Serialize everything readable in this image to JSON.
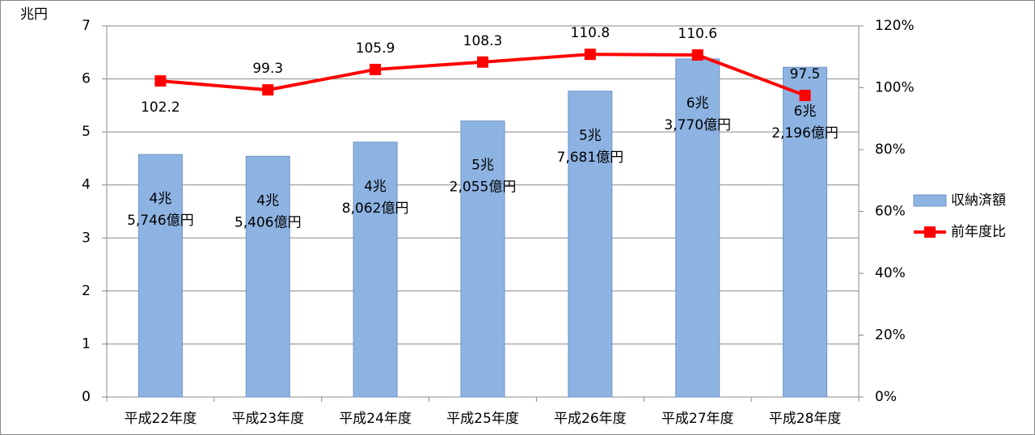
{
  "chart_data": {
    "type": "bar",
    "y_label": "兆円",
    "categories": [
      "平成22年度",
      "平成23年度",
      "平成24年度",
      "平成25年度",
      "平成26年度",
      "平成27年度",
      "平成28年度"
    ],
    "series": [
      {
        "name": "収納済額",
        "type": "bar",
        "color": "#8db3e2",
        "edge": "#6f95c8",
        "values": [
          4.5746,
          4.5406,
          4.8062,
          5.2055,
          5.7681,
          6.377,
          6.2196
        ],
        "value_labels": [
          [
            "4兆",
            "5,746億円"
          ],
          [
            "4兆",
            "5,406億円"
          ],
          [
            "4兆",
            "8,062億円"
          ],
          [
            "5兆",
            "2,055億円"
          ],
          [
            "5兆",
            "7,681億円"
          ],
          [
            "6兆",
            "3,770億円"
          ],
          [
            "6兆",
            "2,196億円"
          ]
        ]
      },
      {
        "name": "前年度比",
        "type": "line",
        "axis": "y2",
        "color": "#ff0000",
        "values": [
          102.2,
          99.3,
          105.9,
          108.3,
          110.8,
          110.6,
          97.5
        ]
      }
    ],
    "ylim": [
      0,
      7
    ],
    "yticks": [
      0,
      1,
      2,
      3,
      4,
      5,
      6,
      7
    ],
    "y2lim": [
      0,
      120
    ],
    "y2ticks": [
      {
        "value": 0,
        "label": "0%"
      },
      {
        "value": 20,
        "label": "20%"
      },
      {
        "value": 40,
        "label": "40%"
      },
      {
        "value": 60,
        "label": "60%"
      },
      {
        "value": 80,
        "label": "80%"
      },
      {
        "value": 100,
        "label": "100%"
      },
      {
        "value": 120,
        "label": "120%"
      }
    ],
    "grid": true,
    "legend": "right"
  }
}
